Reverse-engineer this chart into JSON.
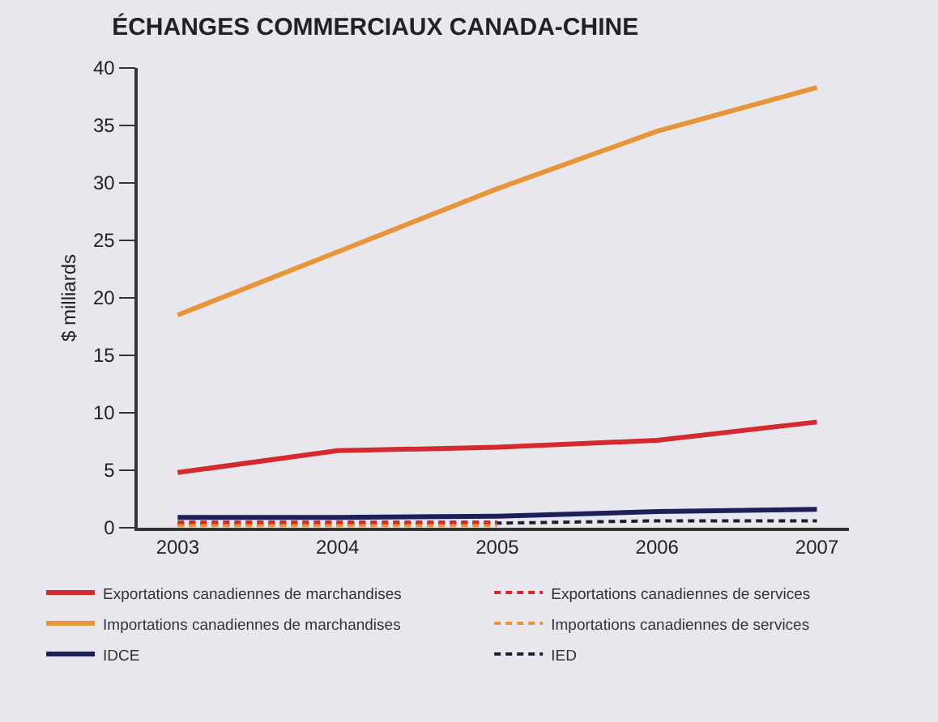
{
  "chart_data": {
    "type": "line",
    "title": "ÉCHANGES COMMERCIAUX CANADA-CHINE",
    "ylabel": "$ milliards",
    "categories": [
      "2003",
      "2004",
      "2005",
      "2006",
      "2007"
    ],
    "series": [
      {
        "name": "Exportations canadiennes de marchandises",
        "color": "#d42a2f",
        "values": [
          4.8,
          6.7,
          7.0,
          7.6,
          9.2
        ],
        "line_style": "solid"
      },
      {
        "name": "Exportations canadiennes de services",
        "color": "#d42a2f",
        "values": [
          0.5,
          0.5,
          0.5,
          null,
          null
        ],
        "line_style": "dashed"
      },
      {
        "name": "Importations canadiennes de marchandises",
        "color": "#e8953a",
        "values": [
          18.5,
          24.0,
          29.5,
          34.5,
          38.3
        ],
        "line_style": "solid"
      },
      {
        "name": "Importations canadiennes de services",
        "color": "#e8953a",
        "values": [
          0.2,
          0.2,
          0.2,
          null,
          null
        ],
        "line_style": "dashed"
      },
      {
        "name": "IDCE",
        "color": "#1e1e5a",
        "values": [
          0.9,
          0.9,
          1.0,
          1.4,
          1.6
        ],
        "line_style": "solid"
      },
      {
        "name": "IED",
        "color": "#1e1e2e",
        "values": [
          0.3,
          0.3,
          0.4,
          0.6,
          0.6
        ],
        "line_style": "dashed"
      }
    ],
    "ylim": [
      0,
      40
    ],
    "yticks": [
      0,
      5,
      10,
      15,
      20,
      25,
      30,
      35,
      40
    ],
    "grid": false,
    "legend": "bottom",
    "marker": "none"
  }
}
